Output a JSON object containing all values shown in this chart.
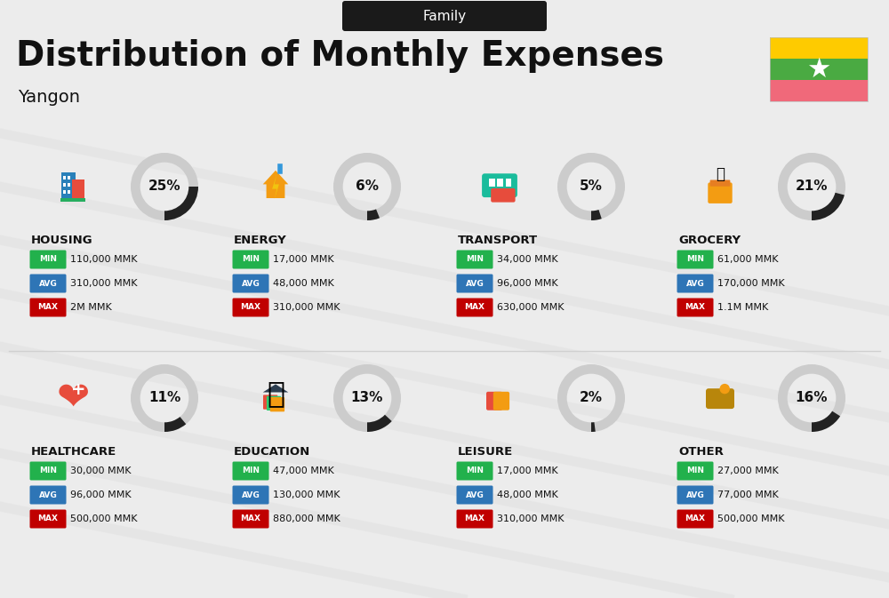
{
  "title_tag": "Family",
  "title": "Distribution of Monthly Expenses",
  "subtitle": "Yangon",
  "background_color": "#ececec",
  "categories": [
    {
      "name": "HOUSING",
      "percent": 25,
      "min": "110,000 MMK",
      "avg": "310,000 MMK",
      "max": "2M MMK",
      "row": 0,
      "col": 0
    },
    {
      "name": "ENERGY",
      "percent": 6,
      "min": "17,000 MMK",
      "avg": "48,000 MMK",
      "max": "310,000 MMK",
      "row": 0,
      "col": 1
    },
    {
      "name": "TRANSPORT",
      "percent": 5,
      "min": "34,000 MMK",
      "avg": "96,000 MMK",
      "max": "630,000 MMK",
      "row": 0,
      "col": 2
    },
    {
      "name": "GROCERY",
      "percent": 21,
      "min": "61,000 MMK",
      "avg": "170,000 MMK",
      "max": "1.1M MMK",
      "row": 0,
      "col": 3
    },
    {
      "name": "HEALTHCARE",
      "percent": 11,
      "min": "30,000 MMK",
      "avg": "96,000 MMK",
      "max": "500,000 MMK",
      "row": 1,
      "col": 0
    },
    {
      "name": "EDUCATION",
      "percent": 13,
      "min": "47,000 MMK",
      "avg": "130,000 MMK",
      "max": "880,000 MMK",
      "row": 1,
      "col": 1
    },
    {
      "name": "LEISURE",
      "percent": 2,
      "min": "17,000 MMK",
      "avg": "48,000 MMK",
      "max": "310,000 MMK",
      "row": 1,
      "col": 2
    },
    {
      "name": "OTHER",
      "percent": 16,
      "min": "27,000 MMK",
      "avg": "77,000 MMK",
      "max": "500,000 MMK",
      "row": 1,
      "col": 3
    }
  ],
  "min_color": "#22b14c",
  "avg_color": "#2e75b6",
  "max_color": "#c00000",
  "label_color": "#ffffff",
  "arc_dark": "#222222",
  "arc_light": "#cccccc",
  "text_dark": "#111111",
  "text_medium": "#333333",
  "tag_bg": "#1a1a1a",
  "tag_text": "#ffffff",
  "flag_yellow": "#fecb00",
  "flag_green": "#4aaa42",
  "flag_red": "#f0697a",
  "divider_color": "#d0d0d0"
}
